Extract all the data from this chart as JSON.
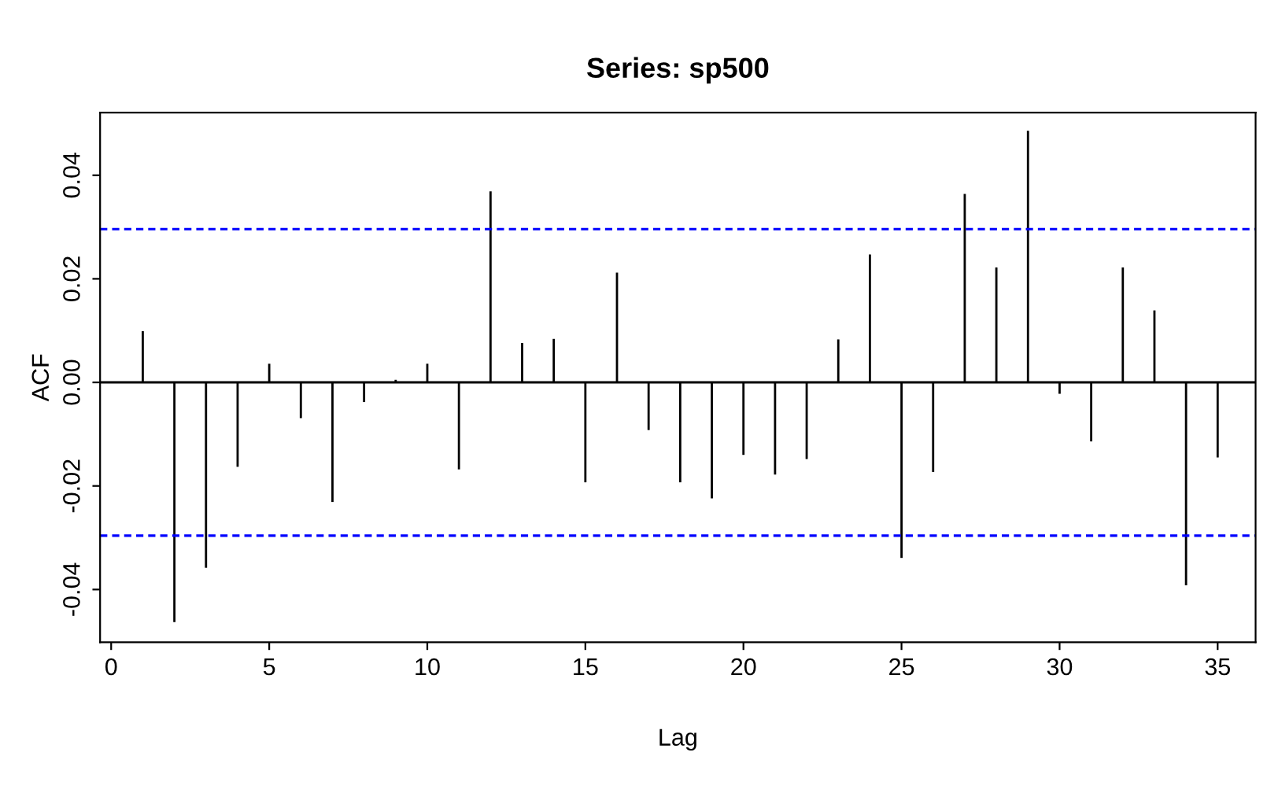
{
  "chart_data": {
    "type": "bar",
    "title": "Series: sp500",
    "xlabel": "Lag",
    "ylabel": "ACF",
    "x": [
      1,
      2,
      3,
      4,
      5,
      6,
      7,
      8,
      9,
      10,
      11,
      12,
      13,
      14,
      15,
      16,
      17,
      18,
      19,
      20,
      21,
      22,
      23,
      24,
      25,
      26,
      27,
      28,
      29,
      30,
      31,
      32,
      33,
      34,
      35
    ],
    "values": [
      0.0099,
      -0.0463,
      -0.0358,
      -0.0163,
      0.0036,
      -0.0069,
      -0.0231,
      -0.0038,
      0.0005,
      0.0036,
      -0.0168,
      0.0369,
      0.0076,
      0.0084,
      -0.0193,
      0.0212,
      -0.0092,
      -0.0193,
      -0.0224,
      -0.014,
      -0.0178,
      -0.0148,
      0.0083,
      0.0247,
      -0.0339,
      -0.0173,
      0.0364,
      0.0222,
      0.0486,
      -0.0022,
      -0.0114,
      0.0222,
      0.0139,
      -0.0392,
      -0.0145
    ],
    "color": "#000000",
    "xlim": [
      -0.35,
      36.2
    ],
    "xticks": [
      0,
      5,
      10,
      15,
      20,
      25,
      30,
      35
    ],
    "ylim": [
      -0.0502,
      0.0521
    ],
    "yticks": [
      {
        "value": -0.04,
        "label": "-0.04"
      },
      {
        "value": -0.02,
        "label": "-0.02"
      },
      {
        "value": 0,
        "label": "0.00"
      },
      {
        "value": 0.02,
        "label": "0.02"
      },
      {
        "value": 0.04,
        "label": "0.04"
      }
    ],
    "ref_lines": [
      {
        "axis": "y",
        "value": 0,
        "color": "#000000",
        "line_style": "solid"
      },
      {
        "axis": "y",
        "value": 0.0296,
        "color": "#0000ff",
        "line_style": "dashed"
      },
      {
        "axis": "y",
        "value": -0.0296,
        "color": "#0000ff",
        "line_style": "dashed"
      }
    ],
    "grid": false,
    "legend": false
  }
}
